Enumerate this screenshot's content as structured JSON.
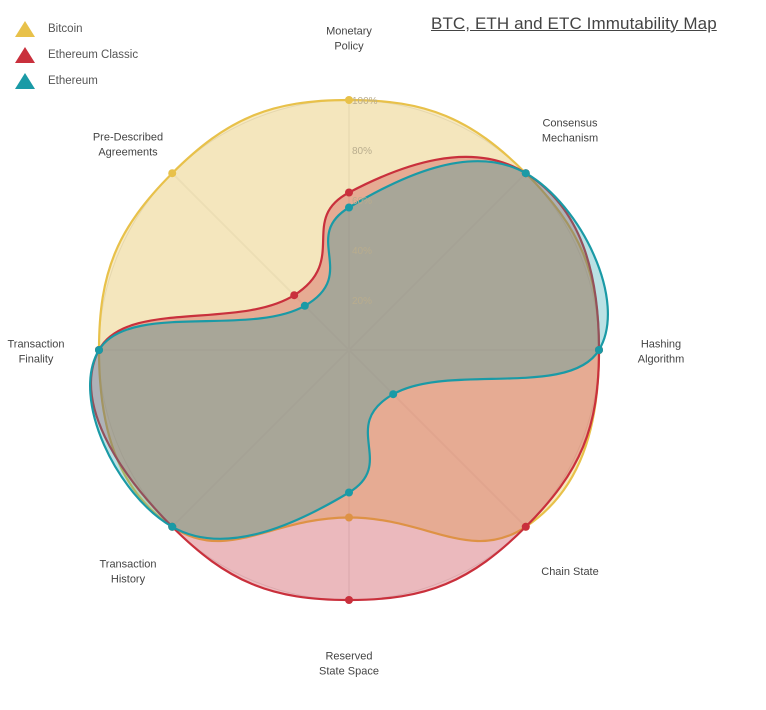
{
  "title": "BTC, ETH and ETC Immutability Map",
  "legend": [
    {
      "label": "Bitcoin",
      "color": "#e8c14a",
      "icon": "triangle-icon"
    },
    {
      "label": "Ethereum Classic",
      "color": "#c9303c",
      "icon": "triangle-icon"
    },
    {
      "label": "Ethereum",
      "color": "#1a9aa6",
      "icon": "triangle-icon"
    }
  ],
  "chart_data": {
    "type": "radar",
    "title": "BTC, ETH and ETC Immutability Map",
    "categories": [
      "Monetary Policy",
      "Consensus Mechanism",
      "Hashing Algorithm",
      "Chain State",
      "Reserved State Space",
      "Transaction History",
      "Transaction Finality",
      "Pre-Described Agreements"
    ],
    "category_label_lines": [
      [
        "Monetary",
        "Policy"
      ],
      [
        "Consensus",
        "Mechanism"
      ],
      [
        "Hashing",
        "Algorithm"
      ],
      [
        "Chain State"
      ],
      [
        "Reserved",
        "State Space"
      ],
      [
        "Transaction",
        "History"
      ],
      [
        "Transaction",
        "Finality"
      ],
      [
        "Pre-Described",
        "Agreements"
      ]
    ],
    "radial_ticks": [
      "20%",
      "40%",
      "60%",
      "80%",
      "100%"
    ],
    "rlim": [
      0,
      100
    ],
    "series": [
      {
        "name": "Bitcoin",
        "color": "#e8c14a",
        "fill": "rgba(232,193,74,0.35)",
        "values": [
          100,
          100,
          100,
          100,
          67,
          100,
          100,
          100
        ]
      },
      {
        "name": "Ethereum Classic",
        "color": "#c9303c",
        "fill": "rgba(201,48,60,0.32)",
        "values": [
          63,
          100,
          100,
          100,
          100,
          100,
          100,
          31
        ]
      },
      {
        "name": "Ethereum",
        "color": "#1a9aa6",
        "fill": "rgba(26,154,166,0.30)",
        "values": [
          57,
          100,
          100,
          25,
          57,
          100,
          100,
          25
        ]
      }
    ],
    "legend_position": "top-left",
    "grid": true
  }
}
